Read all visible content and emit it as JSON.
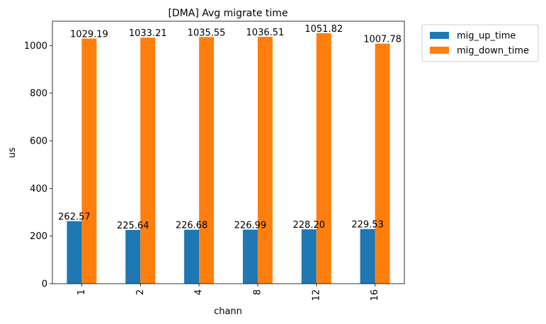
{
  "chart_data": {
    "type": "bar",
    "title": "[DMA] Avg migrate time",
    "xlabel": "chann",
    "ylabel": "us",
    "categories": [
      "1",
      "2",
      "4",
      "8",
      "12",
      "16"
    ],
    "ylim": [
      0,
      1102
    ],
    "yticks": [
      0,
      200,
      400,
      600,
      800,
      1000
    ],
    "series": [
      {
        "name": "mig_up_time",
        "color": "#1f77b4",
        "values": [
          262.57,
          225.64,
          226.68,
          226.99,
          228.2,
          229.53
        ],
        "labels": [
          "262.57",
          "225.64",
          "226.68",
          "226.99",
          "228.20",
          "229.53"
        ]
      },
      {
        "name": "mig_down_time",
        "color": "#ff7f0e",
        "values": [
          1029.19,
          1033.21,
          1035.55,
          1036.51,
          1051.82,
          1007.78
        ],
        "labels": [
          "1029.19",
          "1033.21",
          "1035.55",
          "1036.51",
          "1051.82",
          "1007.78"
        ]
      }
    ],
    "legend_position": "outside-top-right",
    "grid": false
  }
}
